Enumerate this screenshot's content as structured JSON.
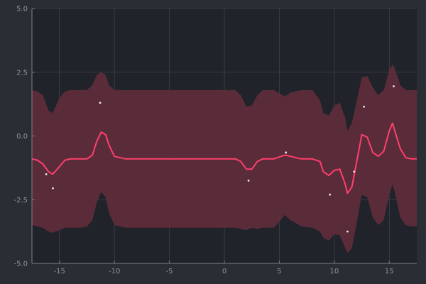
{
  "chart_data": {
    "type": "line",
    "title": "",
    "xlabel": "",
    "ylabel": "",
    "xlim": [
      -17.5,
      17.5
    ],
    "ylim": [
      -5,
      5
    ],
    "grid": true,
    "legend": "none",
    "x_ticks": [
      {
        "value": -15,
        "label": "-15"
      },
      {
        "value": -10,
        "label": "-10"
      },
      {
        "value": -5,
        "label": "-5"
      },
      {
        "value": 0,
        "label": "0"
      },
      {
        "value": 5,
        "label": "5"
      },
      {
        "value": 10,
        "label": "10"
      },
      {
        "value": 15,
        "label": "15"
      }
    ],
    "y_ticks": [
      {
        "value": -5,
        "label": "-5.0"
      },
      {
        "value": -2.5,
        "label": "-2.5"
      },
      {
        "value": 0,
        "label": "0.0"
      },
      {
        "value": 2.5,
        "label": "2.5"
      },
      {
        "value": 5,
        "label": "5.0"
      }
    ],
    "series": [
      {
        "kind": "line",
        "x": [
          -17.5,
          -17,
          -16.5,
          -16,
          -15.6,
          -15,
          -14.5,
          -14,
          -13,
          -12.5,
          -12,
          -11.6,
          -11.2,
          -10.8,
          -10.5,
          -10,
          -9,
          -8,
          -5,
          0,
          1,
          1.5,
          2,
          2.5,
          3,
          3.5,
          4.5,
          5.5,
          6,
          7,
          8,
          8.7,
          9,
          9.5,
          10,
          10.5,
          11,
          11.2,
          11.6,
          12,
          12.5,
          13,
          13.5,
          14,
          14.5,
          15,
          15.3,
          15.5,
          16,
          16.5,
          17,
          17.5
        ],
        "y": [
          -0.9,
          -0.95,
          -1.1,
          -1.4,
          -1.5,
          -1.2,
          -0.95,
          -0.9,
          -0.9,
          -0.9,
          -0.75,
          -0.2,
          0.15,
          0.05,
          -0.35,
          -0.8,
          -0.9,
          -0.9,
          -0.9,
          -0.9,
          -0.9,
          -1.0,
          -1.3,
          -1.3,
          -1.0,
          -0.9,
          -0.9,
          -0.75,
          -0.8,
          -0.9,
          -0.9,
          -1.0,
          -1.4,
          -1.55,
          -1.35,
          -1.3,
          -1.9,
          -2.25,
          -2.0,
          -1.1,
          0.05,
          -0.05,
          -0.65,
          -0.8,
          -0.6,
          0.2,
          0.5,
          0.2,
          -0.5,
          -0.85,
          -0.9,
          -0.9
        ],
        "color": "#ff3f6c"
      },
      {
        "kind": "band-upper",
        "x": [
          -17.5,
          -17,
          -16.5,
          -16,
          -15.6,
          -15,
          -14.5,
          -14,
          -13,
          -12.5,
          -12,
          -11.6,
          -11.2,
          -10.8,
          -10.5,
          -10,
          -9,
          -8,
          -5,
          0,
          1,
          1.5,
          2,
          2.5,
          3,
          3.5,
          4.5,
          5.5,
          6,
          7,
          8,
          8.7,
          9,
          9.5,
          10,
          10.5,
          11,
          11.2,
          11.6,
          12,
          12.5,
          13,
          13.5,
          14,
          14.5,
          15,
          15.3,
          15.5,
          16,
          16.5,
          17,
          17.5
        ],
        "y": [
          1.8,
          1.75,
          1.6,
          1.0,
          0.9,
          1.5,
          1.75,
          1.8,
          1.8,
          1.8,
          2.0,
          2.4,
          2.5,
          2.4,
          2.0,
          1.8,
          1.8,
          1.8,
          1.8,
          1.8,
          1.8,
          1.6,
          1.15,
          1.2,
          1.6,
          1.8,
          1.8,
          1.55,
          1.7,
          1.8,
          1.8,
          1.4,
          0.9,
          0.8,
          1.2,
          1.3,
          0.7,
          0.2,
          0.5,
          1.3,
          2.3,
          2.35,
          1.9,
          1.6,
          1.8,
          2.6,
          2.8,
          2.65,
          2.0,
          1.8,
          1.8,
          1.8
        ],
        "color": "#5e2c3a"
      },
      {
        "kind": "band-lower",
        "x": [
          -17.5,
          -17,
          -16.5,
          -16,
          -15.6,
          -15,
          -14.5,
          -14,
          -13,
          -12.5,
          -12,
          -11.6,
          -11.2,
          -10.8,
          -10.5,
          -10,
          -9,
          -8,
          -5,
          0,
          1,
          1.5,
          2,
          2.5,
          3,
          3.5,
          4.5,
          5.5,
          6,
          7,
          8,
          8.7,
          9,
          9.5,
          10,
          10.5,
          11,
          11.2,
          11.6,
          12,
          12.5,
          13,
          13.5,
          14,
          14.5,
          15,
          15.3,
          15.5,
          16,
          16.5,
          17,
          17.5
        ],
        "y": [
          -3.5,
          -3.55,
          -3.6,
          -3.75,
          -3.8,
          -3.7,
          -3.6,
          -3.6,
          -3.6,
          -3.55,
          -3.3,
          -2.6,
          -2.2,
          -2.4,
          -3.0,
          -3.5,
          -3.6,
          -3.6,
          -3.6,
          -3.6,
          -3.6,
          -3.65,
          -3.7,
          -3.6,
          -3.65,
          -3.6,
          -3.6,
          -3.1,
          -3.3,
          -3.55,
          -3.6,
          -3.75,
          -4.0,
          -4.1,
          -3.85,
          -3.9,
          -4.4,
          -4.6,
          -4.4,
          -3.5,
          -2.3,
          -2.4,
          -3.2,
          -3.5,
          -3.3,
          -2.3,
          -1.9,
          -2.2,
          -3.2,
          -3.5,
          -3.55,
          -3.55
        ],
        "color": "#5e2c3a"
      },
      {
        "kind": "scatter",
        "x": [
          -16.2,
          -15.6,
          -11.3,
          2.2,
          5.6,
          9.6,
          11.2,
          11.8,
          12.7,
          15.4
        ],
        "y": [
          -1.5,
          -2.05,
          1.3,
          -1.75,
          -0.65,
          -2.3,
          -3.75,
          -1.4,
          1.15,
          1.95
        ],
        "color": "#e8e8ec"
      }
    ],
    "colors": {
      "page": "#2a2d34",
      "plot_bg": "#20232a",
      "grid": "#3e424a",
      "axis": "#7a7e86",
      "band": "#5e2c3a",
      "line": "#ff3f6c",
      "point": "#e8e8ec"
    }
  }
}
